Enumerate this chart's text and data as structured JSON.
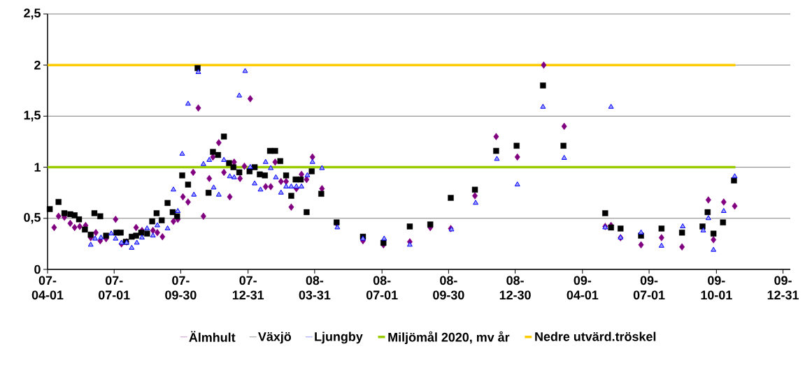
{
  "chart_data": {
    "type": "scatter",
    "grid": "y",
    "legend": "bottom",
    "xlim": [
      "2007-04-01",
      "2010-01-10"
    ],
    "ylim": [
      0,
      2.5
    ],
    "xticks": [
      {
        "value": "2007-04-01",
        "label": "07-04-01"
      },
      {
        "value": "2007-07-01",
        "label": "07-07-01"
      },
      {
        "value": "2007-09-30",
        "label": "07-09-30"
      },
      {
        "value": "2007-12-31",
        "label": "07-12-31"
      },
      {
        "value": "2008-03-31",
        "label": "08-03-31"
      },
      {
        "value": "2008-07-01",
        "label": "08-07-01"
      },
      {
        "value": "2008-09-30",
        "label": "08-09-30"
      },
      {
        "value": "2008-12-30",
        "label": "08-12-30"
      },
      {
        "value": "2009-04-01",
        "label": "09-04-01"
      },
      {
        "value": "2009-07-01",
        "label": "09-07-01"
      },
      {
        "value": "2009-10-01",
        "label": "09-10-01"
      },
      {
        "value": "2009-12-31",
        "label": "09-12-31"
      }
    ],
    "yticks": [
      0,
      {
        "value": 0.5,
        "label": "0,5"
      },
      1,
      {
        "value": 1.5,
        "label": "1,5"
      },
      2,
      {
        "value": 2.5,
        "label": "2,5"
      }
    ],
    "series": [
      {
        "name": "Älmhult",
        "color": "#800080",
        "marker": "diamond",
        "x": [
          "2007-04-10",
          "2007-04-16",
          "2007-04-24",
          "2007-05-02",
          "2007-05-08",
          "2007-05-15",
          "2007-05-23",
          "2007-05-30",
          "2007-06-06",
          "2007-06-12",
          "2007-06-20",
          "2007-07-03",
          "2007-07-11",
          "2007-07-18",
          "2007-07-31",
          "2007-08-08",
          "2007-08-23",
          "2007-08-29",
          "2007-09-05",
          "2007-09-20",
          "2007-09-26",
          "2007-10-03",
          "2007-10-10",
          "2007-10-17",
          "2007-10-24",
          "2007-10-31",
          "2007-11-08",
          "2007-11-13",
          "2007-11-21",
          "2007-11-28",
          "2007-12-06",
          "2007-12-12",
          "2007-12-20",
          "2007-12-26",
          "2008-01-03",
          "2008-01-24",
          "2008-01-31",
          "2008-02-06",
          "2008-02-14",
          "2008-02-21",
          "2008-02-28",
          "2008-03-06",
          "2008-03-13",
          "2008-03-20",
          "2008-03-28",
          "2008-04-10",
          "2008-04-30",
          "2008-06-05",
          "2008-07-03",
          "2008-08-08",
          "2008-09-05",
          "2008-10-03",
          "2008-11-05",
          "2008-12-04",
          "2009-01-02",
          "2009-02-07",
          "2009-03-07",
          "2009-05-02",
          "2009-05-10",
          "2009-05-23",
          "2009-06-20",
          "2009-07-18",
          "2009-08-15",
          "2009-09-20",
          "2009-09-27",
          "2009-10-11",
          "2009-10-26"
        ],
        "values": [
          0.41,
          0.52,
          0.51,
          0.45,
          0.41,
          0.42,
          0.43,
          0.31,
          0.36,
          0.28,
          0.3,
          0.49,
          0.25,
          0.27,
          0.41,
          0.38,
          0.38,
          0.36,
          0.32,
          0.47,
          0.49,
          0.71,
          0.66,
          0.95,
          1.58,
          0.52,
          0.89,
          1.1,
          1.24,
          0.95,
          0.71,
          1.05,
          0.89,
          1.01,
          1.67,
          0.81,
          0.81,
          1.05,
          0.86,
          0.86,
          0.61,
          0.79,
          0.93,
          0.88,
          1.1,
          0.79,
          0.45,
          0.28,
          0.24,
          0.27,
          0.41,
          0.4,
          0.72,
          1.3,
          1.1,
          2.0,
          1.4,
          0.42,
          0.43,
          0.31,
          0.24,
          0.31,
          0.22,
          0.68,
          0.29,
          0.66,
          0.62
        ]
      },
      {
        "name": "Växjö",
        "color": "#000000",
        "marker": "square",
        "x": [
          "2007-04-04",
          "2007-04-16",
          "2007-04-24",
          "2007-05-02",
          "2007-05-08",
          "2007-05-14",
          "2007-05-22",
          "2007-05-30",
          "2007-06-04",
          "2007-06-12",
          "2007-06-20",
          "2007-07-04",
          "2007-07-10",
          "2007-07-17",
          "2007-07-25",
          "2007-07-31",
          "2007-08-07",
          "2007-08-15",
          "2007-08-22",
          "2007-08-28",
          "2007-09-04",
          "2007-09-12",
          "2007-09-19",
          "2007-09-25",
          "2007-10-02",
          "2007-10-10",
          "2007-10-23",
          "2007-11-07",
          "2007-11-13",
          "2007-11-20",
          "2007-11-28",
          "2007-12-05",
          "2007-12-11",
          "2007-12-19",
          "2008-01-02",
          "2008-01-09",
          "2008-01-16",
          "2008-01-23",
          "2008-01-30",
          "2008-02-06",
          "2008-02-13",
          "2008-02-21",
          "2008-02-28",
          "2008-03-05",
          "2008-03-12",
          "2008-03-20",
          "2008-03-27",
          "2008-04-09",
          "2008-04-30",
          "2008-06-05",
          "2008-07-03",
          "2008-08-08",
          "2008-09-05",
          "2008-10-03",
          "2008-11-05",
          "2008-12-04",
          "2009-01-01",
          "2009-02-06",
          "2009-03-06",
          "2009-05-02",
          "2009-05-10",
          "2009-05-23",
          "2009-06-20",
          "2009-07-18",
          "2009-08-15",
          "2009-09-12",
          "2009-09-19",
          "2009-09-27",
          "2009-10-10",
          "2009-10-25"
        ],
        "values": [
          0.59,
          0.66,
          0.55,
          0.54,
          0.53,
          0.49,
          0.39,
          0.34,
          0.55,
          0.52,
          0.33,
          0.36,
          0.36,
          0.27,
          0.32,
          0.33,
          0.36,
          0.35,
          0.47,
          0.55,
          0.48,
          0.65,
          0.56,
          0.52,
          0.92,
          0.83,
          1.97,
          0.75,
          1.15,
          1.12,
          1.3,
          1.04,
          1.0,
          0.95,
          0.96,
          1.0,
          0.93,
          0.92,
          1.16,
          1.16,
          1.06,
          0.92,
          0.72,
          0.88,
          0.88,
          0.56,
          0.96,
          0.74,
          0.46,
          0.32,
          0.26,
          0.42,
          0.44,
          0.7,
          0.78,
          1.16,
          1.21,
          1.8,
          1.21,
          0.55,
          0.41,
          0.4,
          0.33,
          0.4,
          0.36,
          0.42,
          0.56,
          0.35,
          0.46,
          0.87
        ]
      },
      {
        "name": "Ljungby",
        "color": "#0000ff",
        "marker": "triangle",
        "x": [
          "2007-05-30",
          "2007-06-05",
          "2007-06-13",
          "2007-06-27",
          "2007-07-03",
          "2007-07-11",
          "2007-07-18",
          "2007-07-25",
          "2007-08-01",
          "2007-08-08",
          "2007-08-15",
          "2007-08-23",
          "2007-08-29",
          "2007-09-12",
          "2007-09-20",
          "2007-09-26",
          "2007-10-02",
          "2007-10-10",
          "2007-10-18",
          "2007-10-24",
          "2007-10-31",
          "2007-11-08",
          "2007-11-14",
          "2007-11-21",
          "2007-11-28",
          "2007-12-06",
          "2007-12-12",
          "2007-12-19",
          "2007-12-27",
          "2008-01-03",
          "2008-01-09",
          "2008-01-17",
          "2008-01-24",
          "2008-01-31",
          "2008-02-07",
          "2008-02-14",
          "2008-02-21",
          "2008-02-28",
          "2008-03-06",
          "2008-03-13",
          "2008-03-21",
          "2008-03-28",
          "2008-04-10",
          "2008-05-01",
          "2008-06-05",
          "2008-07-04",
          "2008-08-08",
          "2008-10-04",
          "2008-11-06",
          "2008-12-05",
          "2009-01-02",
          "2009-02-06",
          "2009-03-07",
          "2009-05-02",
          "2009-05-10",
          "2009-05-23",
          "2009-06-20",
          "2009-07-18",
          "2009-08-16",
          "2009-09-13",
          "2009-09-20",
          "2009-09-27",
          "2009-10-11",
          "2009-10-26"
        ],
        "values": [
          0.24,
          0.3,
          0.31,
          0.35,
          0.3,
          0.26,
          0.26,
          0.21,
          0.26,
          0.31,
          0.4,
          0.33,
          0.43,
          0.4,
          0.78,
          0.57,
          1.13,
          1.62,
          0.73,
          1.93,
          1.03,
          1.07,
          0.8,
          0.73,
          1.07,
          0.91,
          0.9,
          1.7,
          1.94,
          1.0,
          0.84,
          0.78,
          1.05,
          0.99,
          0.9,
          0.75,
          0.81,
          0.81,
          0.81,
          0.81,
          0.92,
          1.05,
          0.99,
          0.41,
          0.3,
          0.3,
          0.24,
          0.39,
          0.65,
          1.08,
          0.83,
          1.59,
          1.09,
          0.41,
          1.59,
          0.31,
          0.36,
          0.23,
          0.42,
          0.38,
          0.5,
          0.19,
          0.57,
          0.91
        ]
      },
      {
        "name": "Miljömål 2020, mv år",
        "type": "line",
        "color": "#99cc00",
        "marker": "none",
        "x": [
          "2007-04-01",
          "2009-10-27"
        ],
        "values": [
          1,
          1
        ]
      },
      {
        "name": "Nedre utvärd.tröskel",
        "type": "line",
        "color": "#ffcc00",
        "marker": "none",
        "x": [
          "2007-04-01",
          "2009-10-27"
        ],
        "values": [
          2,
          2
        ]
      }
    ]
  }
}
